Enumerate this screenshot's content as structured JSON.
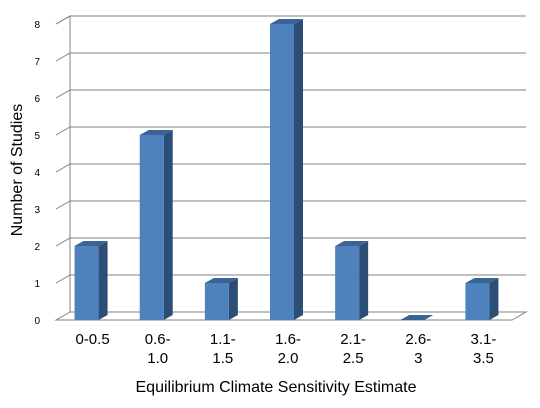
{
  "chart_data": {
    "type": "bar",
    "categories": [
      [
        "0-0.5"
      ],
      [
        "0.6-",
        "1.0"
      ],
      [
        "1.1-",
        "1.5"
      ],
      [
        "1.6-",
        "2.0"
      ],
      [
        "2.1-",
        "2.5"
      ],
      [
        "2.6-",
        "3"
      ],
      [
        "3.1-",
        "3.5"
      ]
    ],
    "values": [
      2,
      5,
      1,
      8,
      2,
      0,
      1
    ],
    "xlabel": "Equilibrium Climate Sensitivity Estimate",
    "ylabel": "Number of Studies",
    "ylim": [
      0,
      8
    ],
    "yticks": [
      0,
      1,
      2,
      3,
      4,
      5,
      6,
      7,
      8
    ],
    "grid": true,
    "legend": "none",
    "colors": {
      "bar_front": "#4f81bd",
      "bar_side": "#2c4d76",
      "bar_top": "#3a6396",
      "grid": "#808080",
      "wall": "#808080"
    }
  }
}
